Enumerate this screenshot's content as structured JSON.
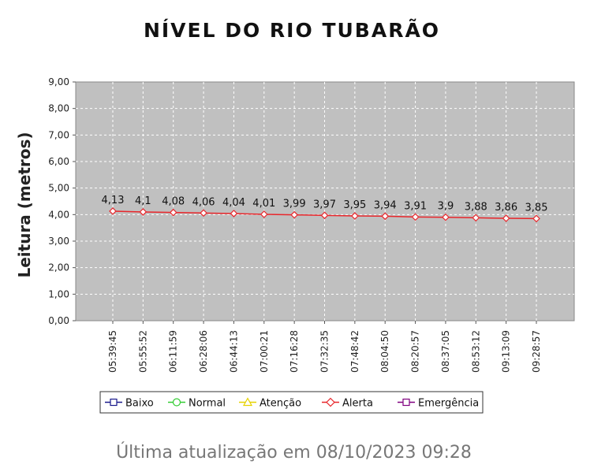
{
  "title": "NÍVEL DO RIO TUBARÃO",
  "footer": "Última atualização em 08/10/2023 09:28",
  "colors": {
    "plot_bg": "#c0c0c0",
    "grid": "#ffffff",
    "line": "#e8262b"
  },
  "chart_data": {
    "type": "line",
    "title": "NÍVEL DO RIO TUBARÃO",
    "xlabel": "",
    "ylabel": "Leitura (metros)",
    "ylim": [
      0,
      9
    ],
    "yticks": [
      "0,00",
      "1,00",
      "2,00",
      "3,00",
      "4,00",
      "5,00",
      "6,00",
      "7,00",
      "8,00",
      "9,00"
    ],
    "grid": true,
    "categories": [
      "05:39:45",
      "05:55:52",
      "06:11:59",
      "06:28:06",
      "06:44:13",
      "07:00:21",
      "07:16:28",
      "07:32:35",
      "07:48:42",
      "08:04:50",
      "08:20:57",
      "08:37:05",
      "08:53:12",
      "09:13:09",
      "09:28:57"
    ],
    "series": [
      {
        "name": "Alerta",
        "values": [
          4.13,
          4.1,
          4.08,
          4.06,
          4.04,
          4.01,
          3.99,
          3.97,
          3.95,
          3.94,
          3.91,
          3.9,
          3.88,
          3.86,
          3.85
        ],
        "labels": [
          "4,13",
          "4,1",
          "4,08",
          "4,06",
          "4,04",
          "4,01",
          "3,99",
          "3,97",
          "3,95",
          "3,94",
          "3,91",
          "3,9",
          "3,88",
          "3,86",
          "3,85"
        ]
      }
    ],
    "legend": {
      "placement": "bottom",
      "entries": [
        {
          "name": "Baixo",
          "color": "#1a1a8c",
          "marker": "square"
        },
        {
          "name": "Normal",
          "color": "#33cc33",
          "marker": "circle"
        },
        {
          "name": "Atenção",
          "color": "#e6d200",
          "marker": "triangle"
        },
        {
          "name": "Alerta",
          "color": "#e8262b",
          "marker": "diamond"
        },
        {
          "name": "Emergência",
          "color": "#800080",
          "marker": "square"
        }
      ]
    }
  }
}
